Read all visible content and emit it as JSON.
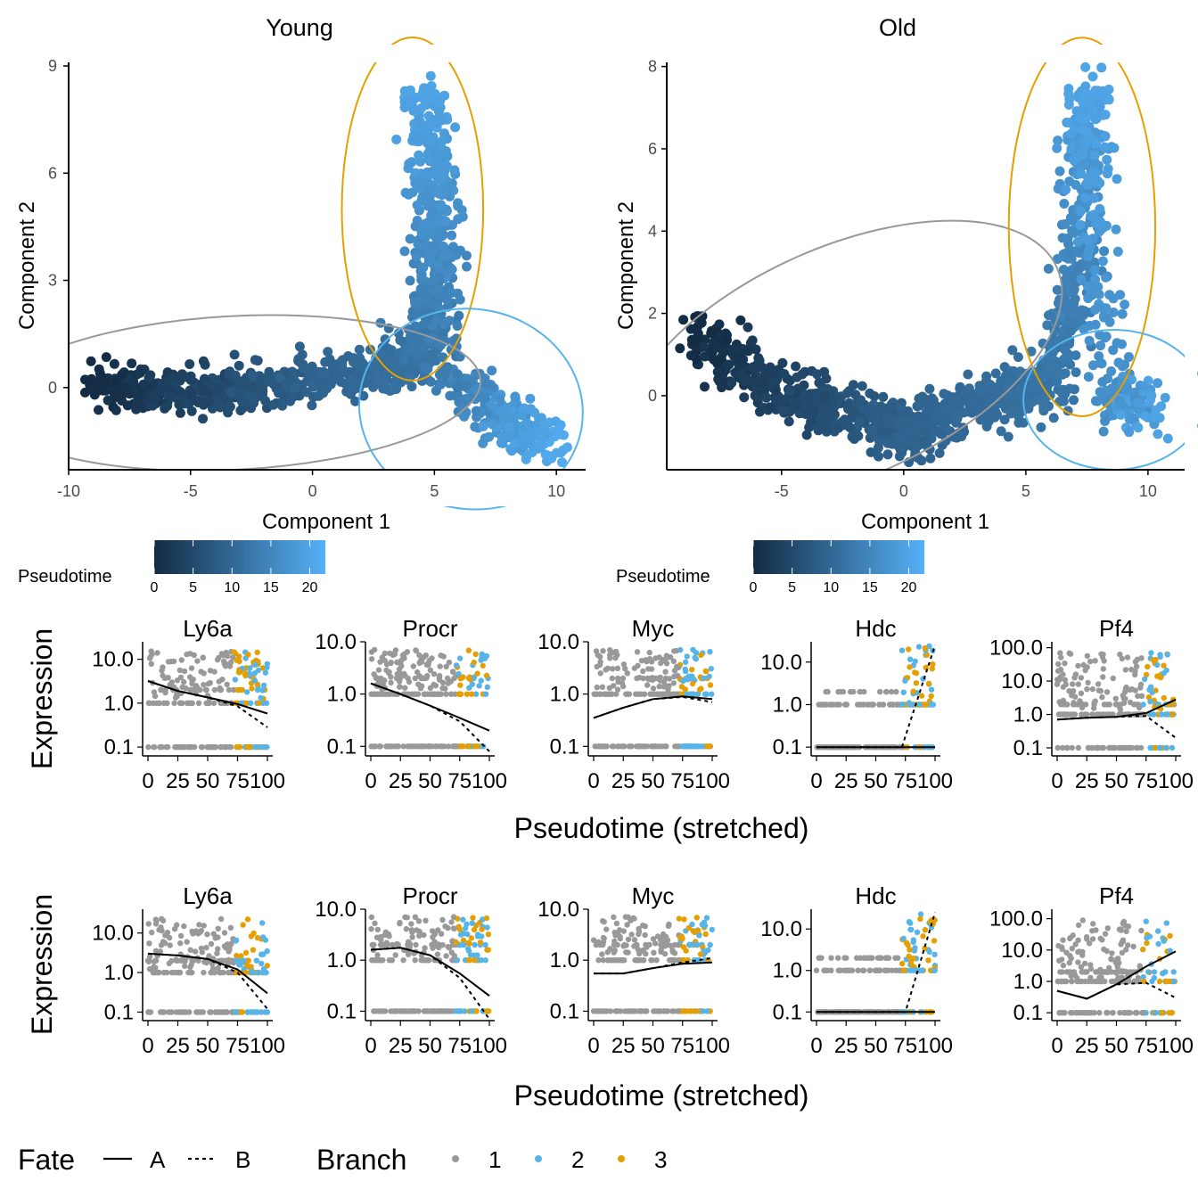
{
  "colors": {
    "pseudotime_low": "#132b43",
    "pseudotime_high": "#56b1f7",
    "branch_1": "#999999",
    "branch_2": "#56b4e9",
    "branch_3": "#e69f00",
    "fit_line": "#000000"
  },
  "legend": {
    "fate_title": "Fate",
    "fate_a": "A",
    "fate_b": "B",
    "branch_title": "Branch",
    "branch_items": [
      "1",
      "2",
      "3"
    ]
  },
  "chart_data": [
    {
      "type": "scatter",
      "title": "Young",
      "xlabel": "Component 1",
      "ylabel": "Component 2",
      "xlim": [
        -10,
        11.2
      ],
      "ylim": [
        -2.3,
        9.1
      ],
      "xticks": [
        -10,
        -5,
        0,
        5,
        10
      ],
      "xtick_labels": [
        "-10",
        "-5",
        "0",
        "5",
        "10"
      ],
      "yticks": [
        0,
        3,
        6,
        9
      ],
      "ytick_labels": [
        "0",
        "3",
        "6",
        "9"
      ],
      "grid": false,
      "color_legend": {
        "title": "Pseudotime",
        "ticks": [
          0,
          5,
          10,
          15,
          20
        ],
        "tick_labels": [
          "0",
          "5",
          "10",
          "15",
          "20"
        ],
        "range": [
          0,
          22
        ]
      },
      "trajectory": [
        [
          -9,
          0.05,
          0
        ],
        [
          -6,
          -0.15,
          3
        ],
        [
          -3,
          -0.1,
          6
        ],
        [
          0,
          0.2,
          9
        ],
        [
          3,
          0.55,
          11
        ],
        [
          4.6,
          0.8,
          12
        ],
        [
          4.9,
          2.5,
          14
        ],
        [
          5.2,
          5.2,
          17
        ],
        [
          4.5,
          8.3,
          20
        ],
        [
          5.5,
          0.4,
          13
        ],
        [
          8,
          -1.0,
          18
        ],
        [
          10,
          -1.7,
          21
        ]
      ],
      "ellipses": [
        {
          "branch": "1",
          "cx": -3.2,
          "cy": -0.15,
          "rx": 10.1,
          "ry": 2.15,
          "angle_deg": 3
        },
        {
          "branch": "3",
          "cx": 4.1,
          "cy": 5.0,
          "rx": 2.9,
          "ry": 4.8,
          "angle_deg": 0
        },
        {
          "branch": "2",
          "cx": 6.5,
          "cy": -0.6,
          "rx": 4.6,
          "ry": 2.8,
          "angle_deg": -10
        }
      ]
    },
    {
      "type": "scatter",
      "title": "Old",
      "xlabel": "Component 1",
      "ylabel": "Component 2",
      "xlim": [
        -9.7,
        11.5
      ],
      "ylim": [
        -1.8,
        8.1
      ],
      "xticks": [
        -5,
        0,
        5,
        10
      ],
      "xtick_labels": [
        "-5",
        "0",
        "5",
        "10"
      ],
      "yticks": [
        0,
        2,
        4,
        6,
        8
      ],
      "ytick_labels": [
        "0",
        "2",
        "4",
        "6",
        "8"
      ],
      "grid": false,
      "color_legend": {
        "title": "Pseudotime",
        "ticks": [
          0,
          5,
          10,
          15,
          20
        ],
        "tick_labels": [
          "0",
          "5",
          "10",
          "15",
          "20"
        ],
        "range": [
          0,
          22
        ]
      },
      "trajectory": [
        [
          -8.5,
          1.5,
          0
        ],
        [
          -6,
          0.3,
          3
        ],
        [
          -4,
          -0.2,
          5
        ],
        [
          -1,
          -0.5,
          8
        ],
        [
          0,
          -1.0,
          9
        ],
        [
          2,
          -0.3,
          10
        ],
        [
          4,
          0,
          11
        ],
        [
          6,
          0.2,
          12
        ],
        [
          7,
          2.5,
          14
        ],
        [
          7.3,
          5.3,
          17
        ],
        [
          7.5,
          7.5,
          20
        ],
        [
          8.5,
          -0.1,
          16
        ],
        [
          10,
          -0.3,
          20
        ]
      ],
      "ellipses": [
        {
          "branch": "1",
          "cx": -2.5,
          "cy": 0.8,
          "rx": 9.6,
          "ry": 2.8,
          "angle_deg": 24
        },
        {
          "branch": "3",
          "cx": 7.3,
          "cy": 4.1,
          "rx": 3.0,
          "ry": 4.6,
          "angle_deg": 0
        },
        {
          "branch": "2",
          "cx": 8.6,
          "cy": -0.1,
          "rx": 3.7,
          "ry": 1.7,
          "angle_deg": 0
        }
      ]
    },
    {
      "type": "scatter",
      "group": "Young",
      "xlabel": "Pseudotime (stretched)",
      "ylabel": "Expression",
      "x_scale": "linear",
      "y_scale": "log10",
      "xlim": [
        0,
        100
      ],
      "xticks": [
        0,
        25,
        50,
        75,
        100
      ],
      "xtick_labels": [
        "0",
        "25",
        "50",
        "75",
        "100"
      ],
      "panels": [
        {
          "gene": "Ly6a",
          "ylim": [
            0.1,
            25
          ],
          "yticks": [
            0.1,
            1,
            10
          ],
          "ytick_labels": [
            "0.1",
            "1.0",
            "10.0"
          ],
          "fit_A": [
            [
              0,
              3.2
            ],
            [
              25,
              1.9
            ],
            [
              50,
              1.35
            ],
            [
              75,
              0.95
            ],
            [
              100,
              0.58
            ]
          ],
          "fit_B": [
            [
              0,
              3.2
            ],
            [
              25,
              1.9
            ],
            [
              50,
              1.35
            ],
            [
              75,
              0.85
            ],
            [
              100,
              0.28
            ]
          ]
        },
        {
          "gene": "Procr",
          "ylim": [
            0.1,
            10
          ],
          "yticks": [
            0.1,
            1,
            10
          ],
          "ytick_labels": [
            "0.1",
            "1.0",
            "10.0"
          ],
          "fit_A": [
            [
              0,
              1.6
            ],
            [
              25,
              1.0
            ],
            [
              50,
              0.6
            ],
            [
              75,
              0.35
            ],
            [
              100,
              0.2
            ]
          ],
          "fit_B": [
            [
              0,
              1.6
            ],
            [
              25,
              1.0
            ],
            [
              50,
              0.6
            ],
            [
              75,
              0.3
            ],
            [
              100,
              0.08
            ]
          ]
        },
        {
          "gene": "Myc",
          "ylim": [
            0.1,
            10
          ],
          "yticks": [
            0.1,
            1,
            10
          ],
          "ytick_labels": [
            "0.1",
            "1.0",
            "10.0"
          ],
          "fit_A": [
            [
              0,
              0.35
            ],
            [
              25,
              0.55
            ],
            [
              50,
              0.8
            ],
            [
              75,
              0.9
            ],
            [
              100,
              0.8
            ]
          ],
          "fit_B": [
            [
              0,
              0.35
            ],
            [
              25,
              0.55
            ],
            [
              50,
              0.8
            ],
            [
              75,
              0.88
            ],
            [
              100,
              0.7
            ]
          ]
        },
        {
          "gene": "Hdc",
          "ylim": [
            0.1,
            30
          ],
          "yticks": [
            0.1,
            1,
            10
          ],
          "ytick_labels": [
            "0.1",
            "1.0",
            "10.0"
          ],
          "fit_A": [
            [
              0,
              0.1
            ],
            [
              50,
              0.1
            ],
            [
              100,
              0.1
            ]
          ],
          "fit_B": [
            [
              0,
              0.1
            ],
            [
              72,
              0.1
            ],
            [
              100,
              25
            ]
          ]
        },
        {
          "gene": "Pf4",
          "ylim": [
            0.1,
            150
          ],
          "yticks": [
            0.1,
            1,
            10,
            100
          ],
          "ytick_labels": [
            "0.1",
            "1.0",
            "10.0",
            "100.0"
          ],
          "fit_A": [
            [
              0,
              0.7
            ],
            [
              25,
              0.8
            ],
            [
              50,
              0.85
            ],
            [
              75,
              1.1
            ],
            [
              100,
              2.8
            ]
          ],
          "fit_B": [
            [
              0,
              0.7
            ],
            [
              25,
              0.8
            ],
            [
              50,
              0.85
            ],
            [
              75,
              0.9
            ],
            [
              100,
              0.2
            ]
          ]
        }
      ]
    },
    {
      "type": "scatter",
      "group": "Old",
      "xlabel": "Pseudotime (stretched)",
      "ylabel": "Expression",
      "x_scale": "linear",
      "y_scale": "log10",
      "xlim": [
        0,
        100
      ],
      "xticks": [
        0,
        25,
        50,
        75,
        100
      ],
      "xtick_labels": [
        "0",
        "25",
        "50",
        "75",
        "100"
      ],
      "panels": [
        {
          "gene": "Ly6a",
          "ylim": [
            0.1,
            40
          ],
          "yticks": [
            0.1,
            1,
            10
          ],
          "ytick_labels": [
            "0.1",
            "1.0",
            "10.0"
          ],
          "fit_A": [
            [
              0,
              3.0
            ],
            [
              25,
              2.7
            ],
            [
              50,
              2.2
            ],
            [
              75,
              1.2
            ],
            [
              100,
              0.3
            ]
          ],
          "fit_B": [
            [
              0,
              3.0
            ],
            [
              25,
              2.7
            ],
            [
              50,
              2.2
            ],
            [
              75,
              1.0
            ],
            [
              100,
              0.12
            ]
          ]
        },
        {
          "gene": "Procr",
          "ylim": [
            0.1,
            10
          ],
          "yticks": [
            0.1,
            1,
            10
          ],
          "ytick_labels": [
            "0.1",
            "1.0",
            "10.0"
          ],
          "fit_A": [
            [
              0,
              1.6
            ],
            [
              25,
              1.75
            ],
            [
              50,
              1.25
            ],
            [
              75,
              0.55
            ],
            [
              100,
              0.2
            ]
          ],
          "fit_B": [
            [
              0,
              1.6
            ],
            [
              25,
              1.75
            ],
            [
              50,
              1.25
            ],
            [
              75,
              0.45
            ],
            [
              100,
              0.07
            ]
          ]
        },
        {
          "gene": "Myc",
          "ylim": [
            0.1,
            10
          ],
          "yticks": [
            0.1,
            1,
            10
          ],
          "ytick_labels": [
            "0.1",
            "1.0",
            "10.0"
          ],
          "fit_A": [
            [
              0,
              0.55
            ],
            [
              25,
              0.55
            ],
            [
              50,
              0.7
            ],
            [
              75,
              0.85
            ],
            [
              100,
              0.9
            ]
          ],
          "fit_B": [
            [
              0,
              0.55
            ],
            [
              25,
              0.55
            ],
            [
              50,
              0.7
            ],
            [
              75,
              0.9
            ],
            [
              100,
              1.1
            ]
          ]
        },
        {
          "gene": "Hdc",
          "ylim": [
            0.1,
            30
          ],
          "yticks": [
            0.1,
            1,
            10
          ],
          "ytick_labels": [
            "0.1",
            "1.0",
            "10.0"
          ],
          "fit_A": [
            [
              0,
              0.1
            ],
            [
              50,
              0.1
            ],
            [
              100,
              0.1
            ]
          ],
          "fit_B": [
            [
              0,
              0.1
            ],
            [
              75,
              0.1
            ],
            [
              100,
              25
            ]
          ]
        },
        {
          "gene": "Pf4",
          "ylim": [
            0.1,
            200
          ],
          "yticks": [
            0.1,
            1,
            10,
            100
          ],
          "ytick_labels": [
            "0.1",
            "1.0",
            "10.0",
            "100.0"
          ],
          "fit_A": [
            [
              0,
              0.5
            ],
            [
              25,
              0.28
            ],
            [
              50,
              0.8
            ],
            [
              75,
              3
            ],
            [
              100,
              9
            ]
          ],
          "fit_B": [
            [
              0,
              0.5
            ],
            [
              25,
              0.28
            ],
            [
              50,
              0.8
            ],
            [
              75,
              0.9
            ],
            [
              100,
              0.3
            ]
          ]
        }
      ]
    }
  ]
}
